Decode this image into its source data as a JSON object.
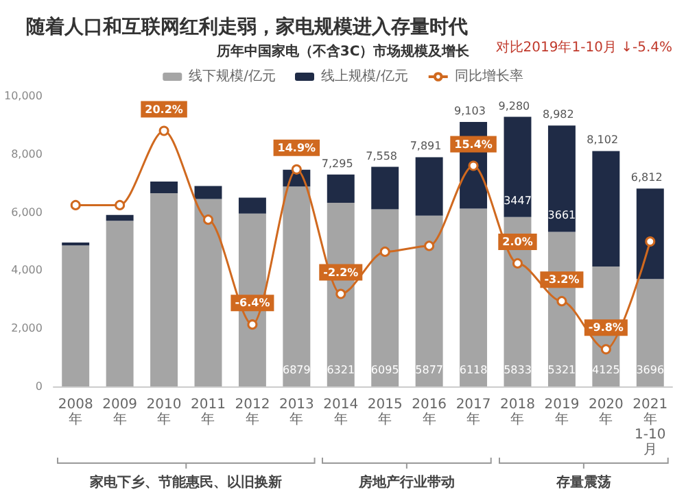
{
  "chart_data": {
    "type": "bar",
    "title": "随着人口和互联网红利走弱，家电规模进入存量时代",
    "subtitle": "历年中国家电（不含3C）市场规模及增长",
    "annotations": [
      "对比2019年1-10月 ↓-5.4%",
      "家电下乡、节能惠民、以旧换新",
      "房地产行业带动",
      "存量震荡"
    ],
    "categories": [
      "2008年",
      "2009年",
      "2010年",
      "2011年",
      "2012年",
      "2013年",
      "2014年",
      "2015年",
      "2016年",
      "2017年",
      "2018年",
      "2019年",
      "2020年",
      "2021年1-10月"
    ],
    "stacked": true,
    "series": [
      {
        "name": "线下规模/亿元",
        "color": "#a5a5a5",
        "values": [
          4850,
          5700,
          6650,
          6450,
          5950,
          6879,
          6321,
          6095,
          5877,
          6118,
          5833,
          5321,
          4125,
          3696
        ],
        "value_labels": [
          null,
          null,
          null,
          null,
          null,
          "6879",
          "6321",
          "6095",
          "5877",
          "6118",
          "5833",
          "5321",
          "4125",
          "3696"
        ]
      },
      {
        "name": "线上规模/亿元",
        "color": "#1f2b46",
        "values": [
          100,
          200,
          400,
          450,
          550,
          580,
          974,
          1463,
          2014,
          2985,
          3447,
          3661,
          3977,
          3116
        ],
        "value_labels": [
          null,
          null,
          null,
          null,
          null,
          null,
          null,
          null,
          null,
          null,
          "3447",
          "3661",
          null,
          null
        ]
      },
      {
        "name": "同比增长率",
        "type": "line",
        "axis": "y2",
        "color": "#d0691f",
        "marker": "circle",
        "values": [
          10,
          10,
          20.2,
          8,
          -6.4,
          14.9,
          -2.2,
          3.6,
          4.4,
          15.4,
          2.0,
          -3.2,
          -9.8,
          5
        ],
        "value_labels": [
          null,
          null,
          "20.2%",
          null,
          "-6.4%",
          "14.9%",
          "-2.2%",
          null,
          null,
          "15.4%",
          "2.0%",
          "-3.2%",
          "-9.8%",
          null
        ]
      }
    ],
    "totals": [
      null,
      null,
      null,
      null,
      null,
      null,
      "7,295",
      "7,558",
      "7,891",
      "9,103",
      "9,280",
      "8,982",
      "8,102",
      "6,812"
    ],
    "ylim": [
      0,
      10000
    ],
    "yticks": [
      {
        "value": 0,
        "label": "0"
      },
      {
        "value": 2000,
        "label": "2,000"
      },
      {
        "value": 4000,
        "label": "4,000"
      },
      {
        "value": 6000,
        "label": "6,000"
      },
      {
        "value": 8000,
        "label": "8,000"
      },
      {
        "value": 10000,
        "label": "10,000"
      }
    ],
    "grid": false,
    "legend": "top"
  }
}
